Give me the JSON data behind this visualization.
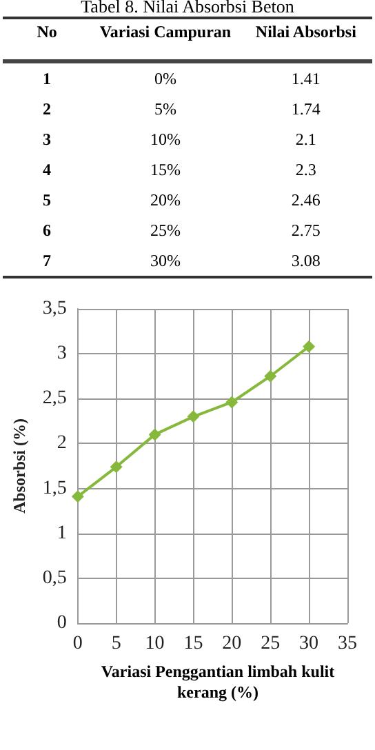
{
  "chart_data": {
    "type": "line",
    "title": "Tabel 8. Nilai Absorbsi Beton",
    "annotations": [
      "No",
      "Variasi Campuran",
      "Nilai Absorbsi",
      "1",
      "0%",
      "1.41",
      "2",
      "5%",
      "1.74",
      "3",
      "10%",
      "2.1",
      "4",
      "15%",
      "2.3",
      "5",
      "20%",
      "2.46",
      "6",
      "25%",
      "2.75",
      "7",
      "30%",
      "3.08"
    ],
    "xlabel": "Variasi Penggantian limbah  kulit kerang (%)",
    "ylabel": "Absorbsi (%)",
    "x": [
      0,
      5,
      10,
      15,
      20,
      25,
      30
    ],
    "series": [
      {
        "color": "#86b83c",
        "values": [
          1.41,
          1.74,
          2.1,
          2.3,
          2.46,
          2.75,
          3.08
        ]
      }
    ],
    "xlim": [
      0,
      35
    ],
    "xticks": [
      0,
      5,
      10,
      15,
      20,
      25,
      30,
      35
    ],
    "ylim": [
      0,
      3.5
    ],
    "yticks": [
      0,
      {
        "value": 0.5,
        "label": "0,5"
      },
      1,
      {
        "value": 1.5,
        "label": "1,5"
      },
      2,
      {
        "value": 2.5,
        "label": "2,5"
      },
      3,
      {
        "value": 3.5,
        "label": "3,5"
      }
    ],
    "grid": true,
    "marker": "diamond",
    "line_style": "solid"
  }
}
